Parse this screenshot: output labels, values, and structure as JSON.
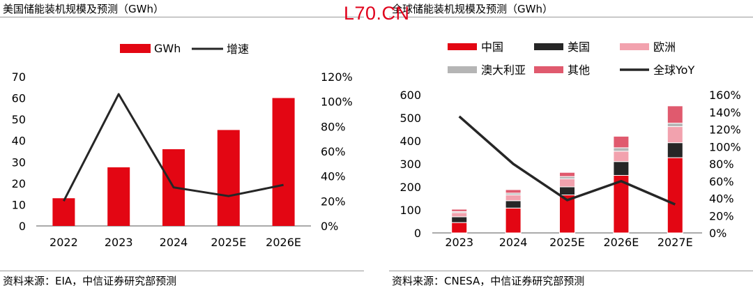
{
  "watermark": "L70.CN",
  "colors": {
    "us_bar": "#e30613",
    "line": "#262626",
    "china": "#e30613",
    "usa": "#262626",
    "europe": "#f2a2ae",
    "apac": "#b5b5b5",
    "other": "#e05a6e"
  },
  "chart_data": [
    {
      "type": "bar",
      "title": "美国储能装机规模及预测（GWh）",
      "source": "资料来源：EIA，中信证券研究部预测",
      "categories": [
        "2022",
        "2023",
        "2024",
        "2025E",
        "2026E"
      ],
      "series": [
        {
          "name": "GWh",
          "type": "bar",
          "axis": "left",
          "values": [
            13,
            27.5,
            36,
            45,
            60
          ]
        },
        {
          "name": "增速",
          "type": "line",
          "axis": "right",
          "values": [
            0.2,
            1.06,
            0.31,
            0.24,
            0.33
          ]
        }
      ],
      "ylim": [
        0,
        70
      ],
      "yticks": [
        "0",
        "10",
        "20",
        "30",
        "40",
        "50",
        "60",
        "70"
      ],
      "y2lim": [
        0,
        1.2
      ],
      "y2ticks": [
        "0%",
        "20%",
        "40%",
        "60%",
        "80%",
        "100%",
        "120%"
      ],
      "legend": "top-center"
    },
    {
      "type": "bar",
      "stacked": true,
      "title": "全球储能装机规模及预测（GWh）",
      "source": "资料来源：CNESA，中信证券研究部预测",
      "categories": [
        "2023",
        "2024",
        "2025E",
        "2026E",
        "2027E"
      ],
      "series": [
        {
          "name": "中国",
          "type": "bar",
          "axis": "left",
          "values": [
            45,
            108,
            165,
            250,
            327
          ]
        },
        {
          "name": "美国",
          "type": "bar",
          "axis": "left",
          "values": [
            25,
            32,
            35,
            60,
            65
          ]
        },
        {
          "name": "欧洲",
          "type": "bar",
          "axis": "left",
          "values": [
            18,
            25,
            35,
            45,
            70
          ]
        },
        {
          "name": "澳大利亚",
          "type": "bar",
          "axis": "left",
          "values": [
            5,
            8,
            10,
            15,
            15
          ]
        },
        {
          "name": "其他",
          "type": "bar",
          "axis": "left",
          "values": [
            10,
            15,
            18,
            50,
            75
          ]
        },
        {
          "name": "全球YoY",
          "type": "line",
          "axis": "right",
          "values": [
            1.35,
            0.8,
            0.38,
            0.6,
            0.33
          ]
        }
      ],
      "ylim": [
        0,
        600
      ],
      "yticks": [
        "0",
        "100",
        "200",
        "300",
        "400",
        "500",
        "600"
      ],
      "y2lim": [
        0,
        1.6
      ],
      "y2ticks": [
        "0%",
        "20%",
        "40%",
        "60%",
        "80%",
        "100%",
        "120%",
        "140%",
        "160%"
      ],
      "legend": "top"
    }
  ]
}
